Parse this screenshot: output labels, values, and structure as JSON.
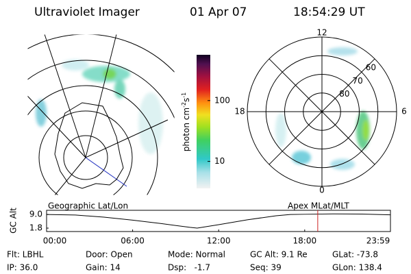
{
  "header": {
    "title": "Ultraviolet Imager",
    "date": "01 Apr 07",
    "time": "18:54:29 UT"
  },
  "colorbar": {
    "label_parts": [
      "photon cm",
      "-2",
      "s",
      "-1"
    ],
    "lim": [
      3.6,
      565
    ],
    "ticks": [
      10,
      100
    ],
    "log": true
  },
  "polar": {
    "mlat_lim": [
      50,
      90
    ],
    "mlat_ticks": [
      60,
      70,
      80
    ],
    "mlt_ticks": [
      0,
      6,
      12,
      18
    ]
  },
  "panel_labels": {
    "left": "Geographic Lat/Lon",
    "right": "Apex MLat/MLT"
  },
  "chart_data": {
    "type": "line",
    "ylabel": "GC Alt",
    "x": [
      0,
      2,
      4,
      6,
      8,
      10,
      10.5,
      12,
      14,
      16,
      17,
      18,
      20,
      22,
      23.98
    ],
    "series": [
      {
        "name": "GC Alt",
        "color": "#000000",
        "values": [
          9.0,
          8.7,
          7.6,
          6.0,
          4.2,
          2.2,
          1.8,
          3.6,
          6.2,
          8.3,
          9.0,
          9.1,
          9.3,
          9.2,
          8.8
        ]
      }
    ],
    "xlim": [
      0,
      23.98
    ],
    "xticks": [
      {
        "value": 0,
        "label": "00:00"
      },
      {
        "value": 6,
        "label": "06:00"
      },
      {
        "value": 12,
        "label": "12:00"
      },
      {
        "value": 18,
        "label": "18:00"
      },
      {
        "value": 23.98,
        "label": "23:59"
      }
    ],
    "ylim": [
      0,
      11.2
    ],
    "yticks": [
      {
        "value": 1.8,
        "label": "1.8"
      },
      {
        "value": 9,
        "label": "9.0"
      }
    ],
    "marker_x": 18.91,
    "marker_color": "#cc2020"
  },
  "info": [
    [
      "Flt: LBHL",
      "Door: Open",
      "Mode: Normal",
      "GC Alt: 9.1 Re",
      "GLat: -73.8"
    ],
    [
      "IP: 36.0",
      "Gain: 14",
      "Dsp:   -1.7",
      "Seq: 39",
      "GLon: 138.4"
    ]
  ]
}
